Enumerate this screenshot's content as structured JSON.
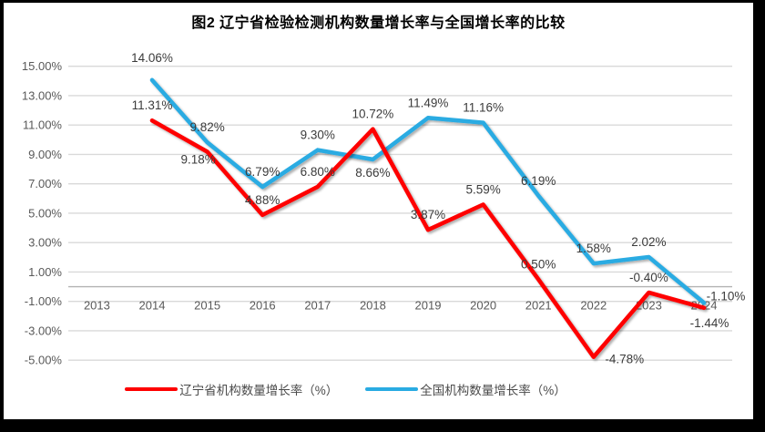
{
  "chart_data": {
    "type": "line",
    "title": "图2 辽宁省检验检测机构数量增长率与全国增长率的比较",
    "categories": [
      "2013",
      "2014",
      "2015",
      "2016",
      "2017",
      "2018",
      "2019",
      "2020",
      "2021",
      "2022",
      "2023",
      "2024"
    ],
    "series": [
      {
        "name": "辽宁省机构数量增长率（%）",
        "color": "#FE0000",
        "values": [
          null,
          11.31,
          9.18,
          4.88,
          6.8,
          10.72,
          3.87,
          5.59,
          0.5,
          -4.78,
          -0.4,
          -1.44
        ]
      },
      {
        "name": "全国机构数量增长率（%）",
        "color": "#29ABE2",
        "values": [
          null,
          14.06,
          9.82,
          6.79,
          9.3,
          8.66,
          11.49,
          11.16,
          6.19,
          1.58,
          2.02,
          -1.1
        ]
      }
    ],
    "ylim": [
      -5,
      15
    ],
    "ytick_step": 2,
    "ytick_labels": [
      "15.00%",
      "13.00%",
      "11.00%",
      "9.00%",
      "7.00%",
      "5.00%",
      "3.00%",
      "1.00%",
      "-1.00%",
      "-3.00%",
      "-5.00%"
    ],
    "value_label_format": "0.00%",
    "grid": true,
    "legend_position": "bottom",
    "colors": {
      "gridline": "#d9d9d9",
      "zero_axis": "#b3b3b3",
      "axis_label": "#595959",
      "data_label": "#3b3b3b"
    }
  }
}
